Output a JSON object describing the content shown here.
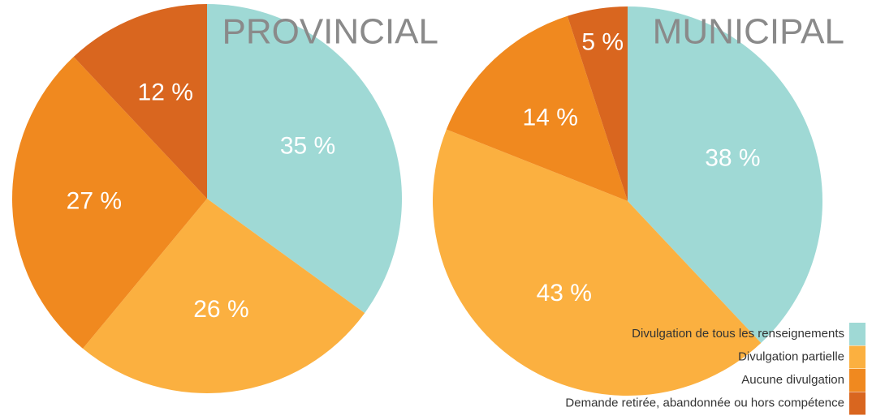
{
  "legend": {
    "labels": [
      "Divulgation de tous les renseignements",
      "Divulgation partielle",
      "Aucune divulgation",
      "Demande retirée, abandonnée ou hors compétence"
    ],
    "colors": [
      "#9fd9d5",
      "#fbb040",
      "#f0891f",
      "#d9661f"
    ]
  },
  "chart_data": [
    {
      "type": "pie",
      "title": "PROVINCIAL",
      "values": [
        35,
        26,
        27,
        12
      ],
      "value_labels": [
        "35 %",
        "26 %",
        "27 %",
        "12 %"
      ]
    },
    {
      "type": "pie",
      "title": "MUNICIPAL",
      "values": [
        38,
        43,
        14,
        5
      ],
      "value_labels": [
        "38 %",
        "43 %",
        "14 %",
        "5 %"
      ]
    }
  ]
}
